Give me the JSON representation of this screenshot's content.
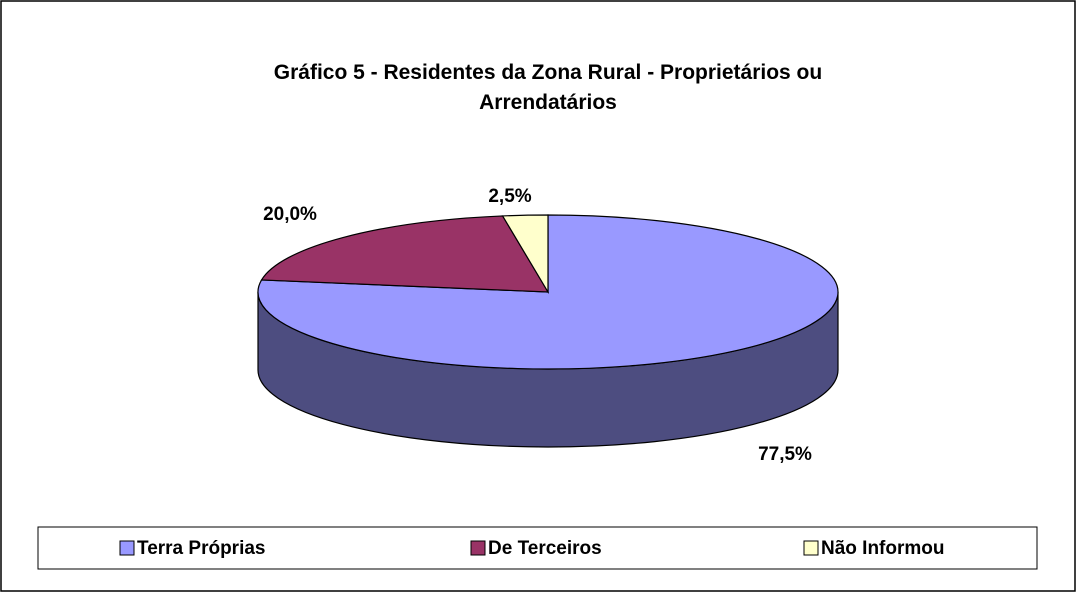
{
  "chart_data": {
    "type": "pie3d",
    "title": "Gráfico 5 - Residentes da Zona Rural - Proprietários ou Arrendatários",
    "categories": [
      "Terra Próprias",
      "De Terceiros",
      "Não Informou"
    ],
    "values": [
      77.5,
      20.0,
      2.5
    ],
    "value_labels": [
      "77,5%",
      "20,0%",
      "2,5%"
    ],
    "colors": [
      "#9999ff",
      "#993366",
      "#ffffcc"
    ],
    "legend": "bottom"
  }
}
